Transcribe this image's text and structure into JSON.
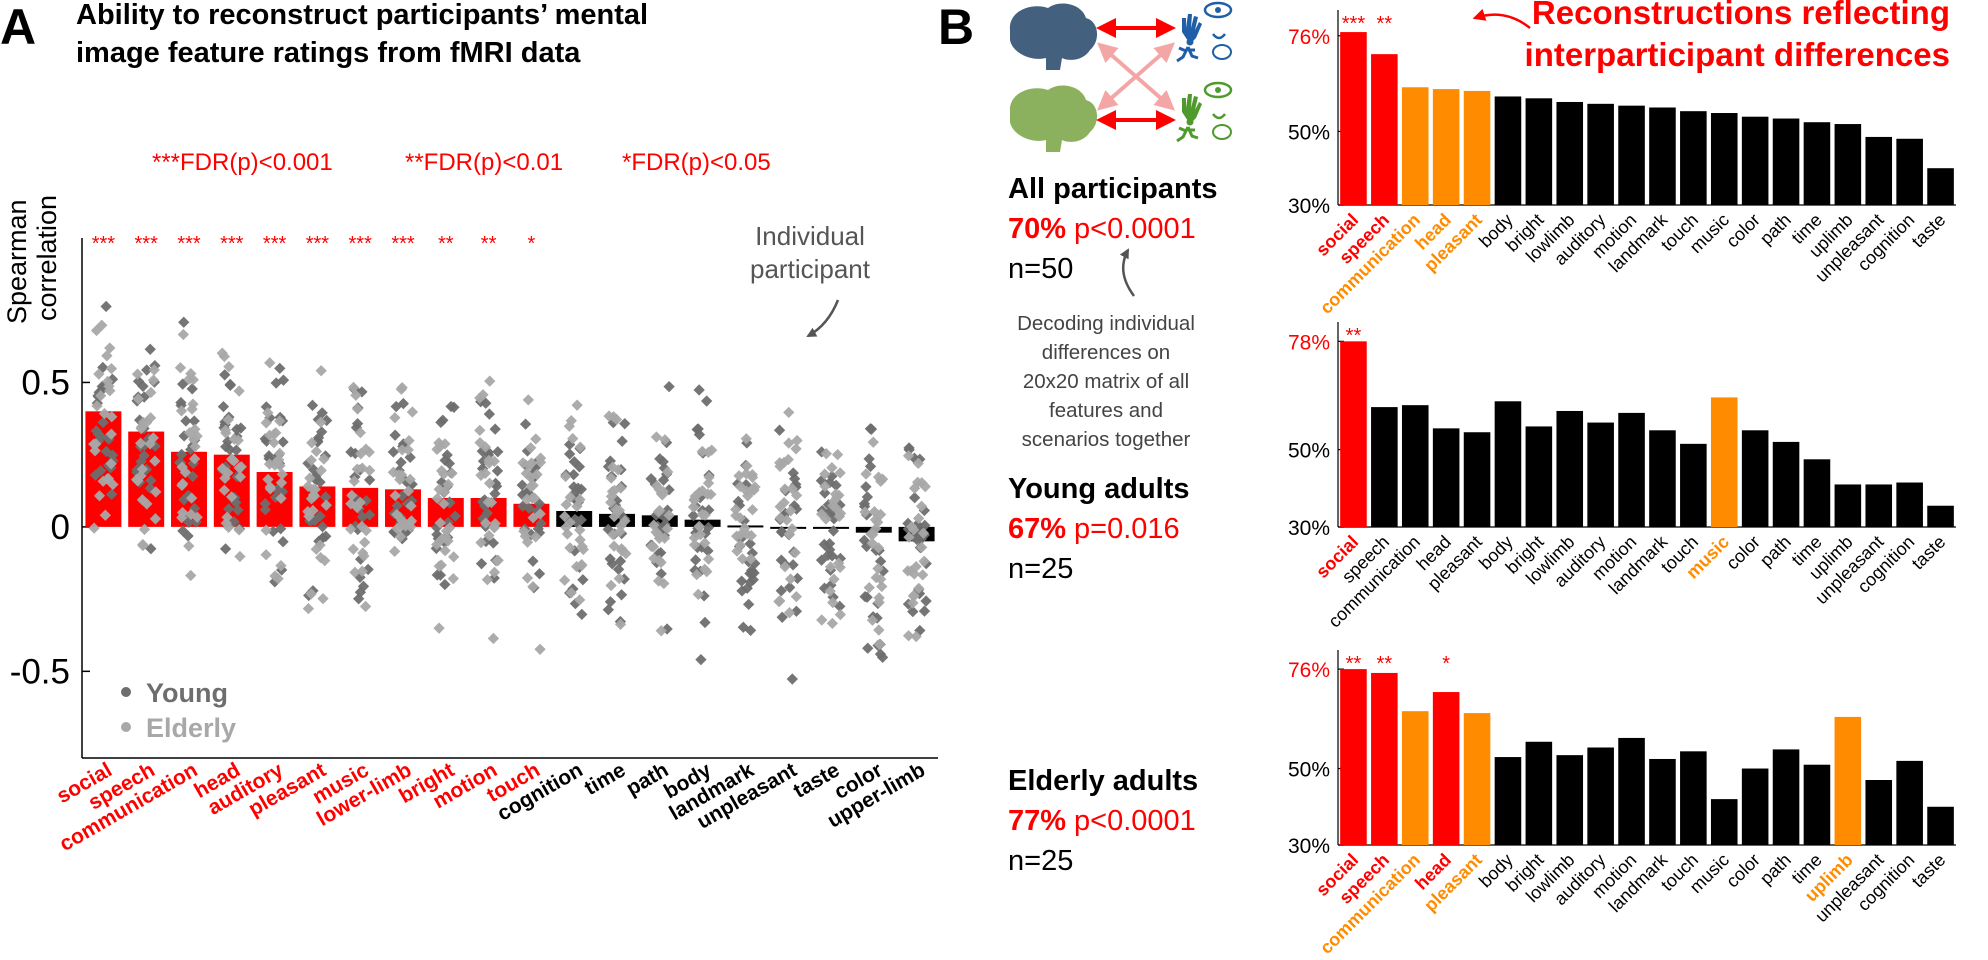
{
  "colors": {
    "red": "#ff0000",
    "orange": "#ff8c00",
    "black": "#000000",
    "young": "#6e6e6e",
    "elderly": "#a8a8a8",
    "brain_blue": "#44607f",
    "brain_green": "#8bb15e",
    "icon_blue": "#1f5fa8",
    "icon_green": "#4f9a2c",
    "arrow_faint": "#f4a6a6"
  },
  "panelA": {
    "letter": "A",
    "title_line1": "Ability to reconstruct participants’ mental",
    "title_line2": "image feature ratings from fMRI data",
    "fdr_legend": [
      "***FDR(p)<0.001",
      "**FDR(p)<0.01",
      "*FDR(p)<0.05"
    ],
    "annotation_line1": "Individual",
    "annotation_line2": "participant",
    "legend": {
      "young": "Young",
      "elderly": "Elderly"
    }
  },
  "panelB": {
    "letter": "B",
    "headline_line1": "Reconstructions reflecting",
    "headline_line2": "interparticipant differences",
    "note_lines": [
      "Decoding individual",
      "differences on",
      "20x20 matrix of all",
      "features and",
      "scenarios together"
    ],
    "groups": [
      {
        "title": "All participants",
        "pct": "70%",
        "p": "p<0.0001",
        "n": "n=50"
      },
      {
        "title": "Young adults",
        "pct": "67%",
        "p": "p=0.016",
        "n": "n=25"
      },
      {
        "title": "Elderly adults",
        "pct": "77%",
        "p": "p<0.0001",
        "n": "n=25"
      }
    ]
  },
  "chart_data": [
    {
      "type": "bar",
      "id": "A",
      "ylabel": "Spearman correlation",
      "ylim": [
        -0.8,
        1.0
      ],
      "yticks": [
        -0.5,
        0,
        0.5
      ],
      "ytick_labels": [
        "-0.5",
        "0",
        "0.5"
      ],
      "categories": [
        "social",
        "speech",
        "communication",
        "head",
        "auditory",
        "pleasant",
        "music",
        "lower-limb",
        "bright",
        "motion",
        "touch",
        "cognition",
        "time",
        "path",
        "body",
        "landmark",
        "unpleasant",
        "taste",
        "color",
        "upper-limb"
      ],
      "values": [
        0.4,
        0.33,
        0.26,
        0.25,
        0.19,
        0.14,
        0.135,
        0.13,
        0.1,
        0.1,
        0.08,
        0.055,
        0.045,
        0.04,
        0.025,
        0.005,
        0.0,
        -0.005,
        -0.02,
        -0.05
      ],
      "significant": [
        true,
        true,
        true,
        true,
        true,
        true,
        true,
        true,
        true,
        true,
        true,
        false,
        false,
        false,
        false,
        false,
        false,
        false,
        false,
        false
      ],
      "stars": [
        "***",
        "***",
        "***",
        "***",
        "***",
        "***",
        "***",
        "***",
        "**",
        "**",
        "*",
        "",
        "",
        "",
        "",
        "",
        "",
        "",
        "",
        ""
      ],
      "series": [
        {
          "name": "Young",
          "per_category_range": "individual participant correlations approx -0.55 to 0.85"
        },
        {
          "name": "Elderly",
          "per_category_range": "individual participant correlations approx -0.65 to 0.85"
        }
      ]
    },
    {
      "type": "bar",
      "id": "B-all",
      "ylim": [
        30,
        83
      ],
      "yticks": [
        30,
        50,
        76
      ],
      "ytick_labels": [
        "30%",
        "50%",
        "76%"
      ],
      "categories": [
        "social",
        "speech",
        "communication",
        "head",
        "pleasant",
        "body",
        "bright",
        "lowlimb",
        "auditory",
        "motion",
        "landmark",
        "touch",
        "music",
        "color",
        "path",
        "time",
        "uplimb",
        "unpleasant",
        "cognition",
        "taste"
      ],
      "values": [
        77,
        71,
        62,
        61.5,
        61,
        59.5,
        59,
        58,
        57.5,
        57,
        56.5,
        55.5,
        55,
        54,
        53.5,
        52.5,
        52,
        48.5,
        48,
        40
      ],
      "highlight": [
        "red",
        "red",
        "orange",
        "orange",
        "orange",
        "black",
        "black",
        "black",
        "black",
        "black",
        "black",
        "black",
        "black",
        "black",
        "black",
        "black",
        "black",
        "black",
        "black",
        "black"
      ],
      "stars": [
        "***",
        "**",
        "",
        "",
        "",
        "",
        "",
        "",
        "",
        "",
        "",
        "",
        "",
        "",
        "",
        "",
        "",
        "",
        "",
        ""
      ]
    },
    {
      "type": "bar",
      "id": "B-young",
      "ylim": [
        30,
        83
      ],
      "yticks": [
        30,
        50,
        78
      ],
      "ytick_labels": [
        "30%",
        "50%",
        "78%"
      ],
      "categories": [
        "social",
        "speech",
        "communication",
        "head",
        "pleasant",
        "body",
        "bright",
        "lowlimb",
        "auditory",
        "motion",
        "landmark",
        "touch",
        "music",
        "color",
        "path",
        "time",
        "uplimb",
        "unpleasant",
        "cognition",
        "taste"
      ],
      "values": [
        78,
        61,
        61.5,
        55.5,
        54.5,
        62.5,
        56,
        60,
        57,
        59.5,
        55,
        51.5,
        63.5,
        55,
        52,
        47.5,
        41,
        41,
        41.5,
        35.5
      ],
      "highlight": [
        "red",
        "black",
        "black",
        "black",
        "black",
        "black",
        "black",
        "black",
        "black",
        "black",
        "black",
        "black",
        "orange",
        "black",
        "black",
        "black",
        "black",
        "black",
        "black",
        "black"
      ],
      "stars": [
        "**",
        "",
        "",
        "",
        "",
        "",
        "",
        "",
        "",
        "",
        "",
        "",
        "",
        "",
        "",
        "",
        "",
        "",
        "",
        ""
      ]
    },
    {
      "type": "bar",
      "id": "B-elderly",
      "ylim": [
        30,
        81
      ],
      "yticks": [
        30,
        50,
        76
      ],
      "ytick_labels": [
        "30%",
        "50%",
        "76%"
      ],
      "categories": [
        "social",
        "speech",
        "communication",
        "head",
        "pleasant",
        "body",
        "bright",
        "lowlimb",
        "auditory",
        "motion",
        "landmark",
        "touch",
        "music",
        "color",
        "path",
        "time",
        "uplimb",
        "unpleasant",
        "cognition",
        "taste"
      ],
      "values": [
        76,
        75,
        65,
        70,
        64.5,
        53,
        57,
        53.5,
        55.5,
        58,
        52.5,
        54.5,
        42,
        50,
        55,
        51,
        63.5,
        47,
        52,
        40
      ],
      "highlight": [
        "red",
        "red",
        "orange",
        "red",
        "orange",
        "black",
        "black",
        "black",
        "black",
        "black",
        "black",
        "black",
        "black",
        "black",
        "black",
        "black",
        "orange",
        "black",
        "black",
        "black"
      ],
      "stars": [
        "**",
        "**",
        "",
        "*",
        "",
        "",
        "",
        "",
        "",
        "",
        "",
        "",
        "",
        "",
        "",
        "",
        "",
        "",
        "",
        ""
      ]
    }
  ]
}
